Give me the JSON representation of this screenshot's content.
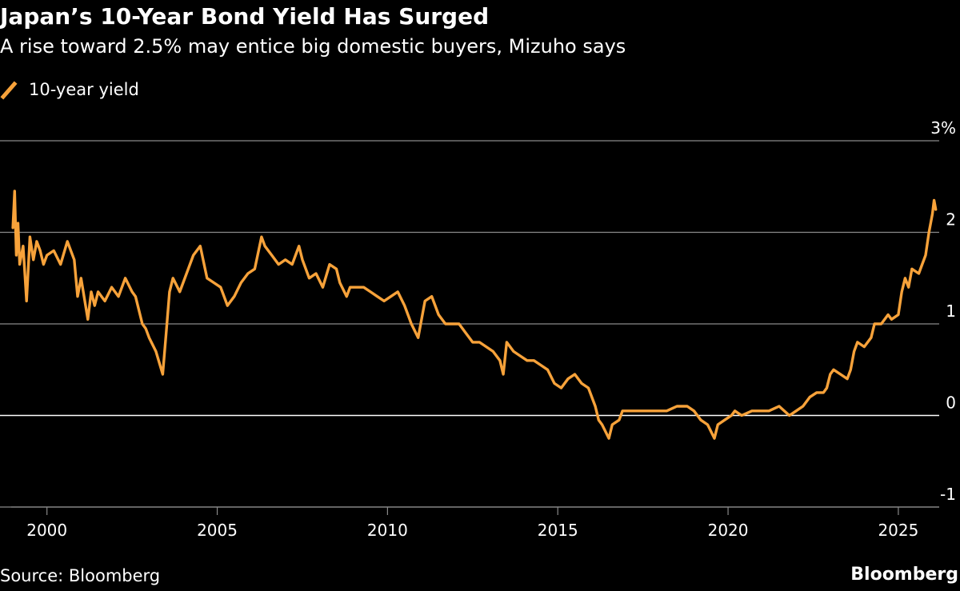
{
  "source": "Source: Bloomberg",
  "brand": "Bloomberg",
  "colors": {
    "series": "#f7a23a",
    "grid": "#8a8a8a",
    "zero_line": "#ffffff",
    "background": "#000000",
    "text": "#ffffff"
  },
  "chart_data": {
    "type": "line",
    "title": "Japan’s 10-Year Bond Yield Has Surged",
    "subtitle": "A rise toward 2.5% may entice big domestic buyers, Mizuho says",
    "xlabel": "",
    "ylabel": "",
    "xlim": [
      1998.95,
      2026.2
    ],
    "ylim": [
      -1,
      3
    ],
    "y_ticks": [
      {
        "value": 3,
        "label": "3%"
      },
      {
        "value": 2,
        "label": "2"
      },
      {
        "value": 1,
        "label": "1"
      },
      {
        "value": 0,
        "label": "0"
      },
      {
        "value": -1,
        "label": "-1"
      }
    ],
    "x_ticks": [
      {
        "value": 2000,
        "label": "2000"
      },
      {
        "value": 2005,
        "label": "2005"
      },
      {
        "value": 2010,
        "label": "2010"
      },
      {
        "value": 2015,
        "label": "2015"
      },
      {
        "value": 2020,
        "label": "2020"
      },
      {
        "value": 2025,
        "label": "2025"
      }
    ],
    "grid": true,
    "legend": "top-left",
    "series": [
      {
        "name": "10-year yield",
        "x": [
          1999.0,
          1999.05,
          1999.1,
          1999.15,
          1999.2,
          1999.3,
          1999.4,
          1999.5,
          1999.6,
          1999.7,
          1999.8,
          1999.9,
          2000.0,
          2000.2,
          2000.4,
          2000.6,
          2000.8,
          2000.9,
          2001.0,
          2001.2,
          2001.3,
          2001.4,
          2001.5,
          2001.7,
          2001.9,
          2002.1,
          2002.3,
          2002.5,
          2002.6,
          2002.8,
          2002.9,
          2003.0,
          2003.2,
          2003.4,
          2003.5,
          2003.6,
          2003.7,
          2003.9,
          2004.1,
          2004.3,
          2004.5,
          2004.7,
          2004.9,
          2005.1,
          2005.3,
          2005.5,
          2005.7,
          2005.9,
          2006.1,
          2006.3,
          2006.4,
          2006.6,
          2006.8,
          2007.0,
          2007.2,
          2007.4,
          2007.5,
          2007.7,
          2007.9,
          2008.1,
          2008.3,
          2008.5,
          2008.6,
          2008.8,
          2008.9,
          2009.1,
          2009.3,
          2009.5,
          2009.7,
          2009.9,
          2010.1,
          2010.3,
          2010.5,
          2010.7,
          2010.9,
          2011.1,
          2011.3,
          2011.5,
          2011.7,
          2011.9,
          2012.1,
          2012.3,
          2012.5,
          2012.7,
          2012.9,
          2013.1,
          2013.3,
          2013.4,
          2013.5,
          2013.7,
          2013.9,
          2014.1,
          2014.3,
          2014.5,
          2014.7,
          2014.9,
          2015.1,
          2015.3,
          2015.5,
          2015.7,
          2015.9,
          2016.1,
          2016.2,
          2016.3,
          2016.5,
          2016.6,
          2016.8,
          2016.9,
          2017.0,
          2017.3,
          2017.6,
          2017.9,
          2018.2,
          2018.5,
          2018.8,
          2019.0,
          2019.2,
          2019.4,
          2019.6,
          2019.7,
          2019.9,
          2020.1,
          2020.2,
          2020.4,
          2020.7,
          2021.0,
          2021.2,
          2021.5,
          2021.8,
          2022.0,
          2022.2,
          2022.4,
          2022.6,
          2022.8,
          2022.9,
          2023.0,
          2023.1,
          2023.3,
          2023.5,
          2023.6,
          2023.7,
          2023.8,
          2024.0,
          2024.2,
          2024.3,
          2024.5,
          2024.7,
          2024.8,
          2025.0,
          2025.1,
          2025.2,
          2025.3,
          2025.4,
          2025.6,
          2025.7,
          2025.8,
          2025.9,
          2026.0,
          2026.05,
          2026.1
        ],
        "values": [
          2.05,
          2.45,
          1.75,
          2.1,
          1.65,
          1.85,
          1.25,
          1.95,
          1.7,
          1.9,
          1.8,
          1.65,
          1.75,
          1.8,
          1.65,
          1.9,
          1.7,
          1.3,
          1.5,
          1.05,
          1.35,
          1.2,
          1.35,
          1.25,
          1.4,
          1.3,
          1.5,
          1.35,
          1.3,
          1.0,
          0.95,
          0.85,
          0.7,
          0.45,
          0.9,
          1.35,
          1.5,
          1.35,
          1.55,
          1.75,
          1.85,
          1.5,
          1.45,
          1.4,
          1.2,
          1.3,
          1.45,
          1.55,
          1.6,
          1.95,
          1.85,
          1.75,
          1.65,
          1.7,
          1.65,
          1.85,
          1.7,
          1.5,
          1.55,
          1.4,
          1.65,
          1.6,
          1.45,
          1.3,
          1.4,
          1.4,
          1.4,
          1.35,
          1.3,
          1.25,
          1.3,
          1.35,
          1.2,
          1.0,
          0.85,
          1.25,
          1.3,
          1.1,
          1.0,
          1.0,
          1.0,
          0.9,
          0.8,
          0.8,
          0.75,
          0.7,
          0.6,
          0.45,
          0.8,
          0.7,
          0.65,
          0.6,
          0.6,
          0.55,
          0.5,
          0.35,
          0.3,
          0.4,
          0.45,
          0.35,
          0.3,
          0.1,
          -0.05,
          -0.1,
          -0.25,
          -0.1,
          -0.05,
          0.05,
          0.05,
          0.05,
          0.05,
          0.05,
          0.05,
          0.1,
          0.1,
          0.05,
          -0.05,
          -0.1,
          -0.25,
          -0.1,
          -0.05,
          0.0,
          0.05,
          0.0,
          0.05,
          0.05,
          0.05,
          0.1,
          0.0,
          0.05,
          0.1,
          0.2,
          0.25,
          0.25,
          0.3,
          0.45,
          0.5,
          0.45,
          0.4,
          0.5,
          0.7,
          0.8,
          0.75,
          0.85,
          1.0,
          1.0,
          1.1,
          1.05,
          1.1,
          1.35,
          1.5,
          1.4,
          1.6,
          1.55,
          1.65,
          1.75,
          2.0,
          2.2,
          2.35,
          2.25
        ]
      }
    ]
  }
}
